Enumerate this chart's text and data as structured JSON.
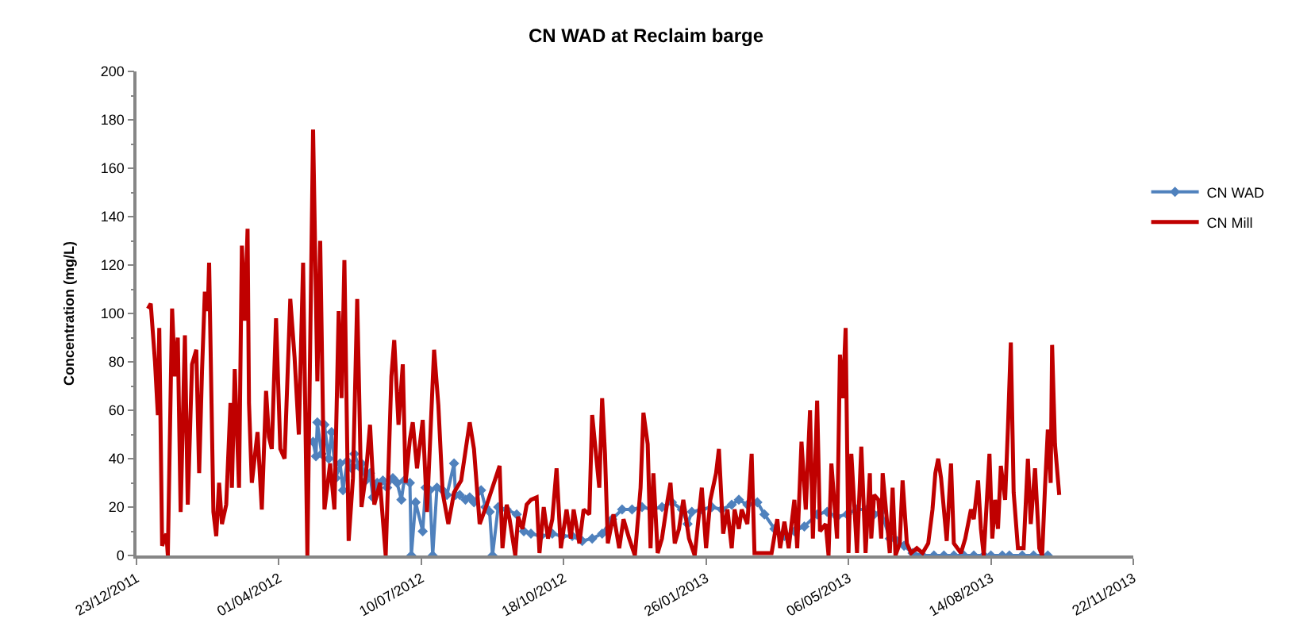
{
  "chart_data": {
    "type": "line",
    "title": "CN WAD at Reclaim barge",
    "ylabel": "Concentration (mg/L)",
    "xlim": [
      "2011-12-23",
      "2013-11-22"
    ],
    "xticks": [
      {
        "value": "2011-12-23",
        "label": "23/12/2011"
      },
      {
        "value": "2012-04-01",
        "label": "01/04/2012"
      },
      {
        "value": "2012-07-10",
        "label": "10/07/2012"
      },
      {
        "value": "2012-10-18",
        "label": "18/10/2012"
      },
      {
        "value": "2013-01-26",
        "label": "26/01/2013"
      },
      {
        "value": "2013-05-06",
        "label": "06/05/2013"
      },
      {
        "value": "2013-08-14",
        "label": "14/08/2013"
      },
      {
        "value": "2013-11-22",
        "label": "22/11/2013"
      }
    ],
    "ylim": [
      0,
      200
    ],
    "yticks": [
      0,
      20,
      40,
      60,
      80,
      100,
      120,
      140,
      160,
      180,
      200
    ],
    "legend": "right",
    "line_style": "solid",
    "series": [
      {
        "name": "CN WAD",
        "color": "#4f81bd",
        "marker": "diamond",
        "x": [
          "2012-04-25",
          "2012-04-27",
          "2012-04-28",
          "2012-05-01",
          "2012-05-03",
          "2012-05-06",
          "2012-05-08",
          "2012-05-11",
          "2012-05-14",
          "2012-05-16",
          "2012-05-19",
          "2012-05-22",
          "2012-05-24",
          "2012-05-27",
          "2012-05-29",
          "2012-06-01",
          "2012-06-04",
          "2012-06-06",
          "2012-06-09",
          "2012-06-13",
          "2012-06-16",
          "2012-06-20",
          "2012-06-23",
          "2012-06-26",
          "2012-06-28",
          "2012-07-02",
          "2012-07-03",
          "2012-07-06",
          "2012-07-11",
          "2012-07-13",
          "2012-07-16",
          "2012-07-18",
          "2012-07-21",
          "2012-07-25",
          "2012-07-28",
          "2012-08-02",
          "2012-08-03",
          "2012-08-06",
          "2012-08-10",
          "2012-08-13",
          "2012-08-16",
          "2012-08-21",
          "2012-08-24",
          "2012-08-27",
          "2012-08-29",
          "2012-09-02",
          "2012-09-08",
          "2012-09-15",
          "2012-09-20",
          "2012-09-25",
          "2012-10-02",
          "2012-10-10",
          "2012-10-17",
          "2012-10-24",
          "2012-10-31",
          "2012-11-07",
          "2012-11-14",
          "2012-11-21",
          "2012-11-28",
          "2012-12-05",
          "2012-12-12",
          "2012-12-19",
          "2012-12-26",
          "2013-01-02",
          "2013-01-09",
          "2013-01-13",
          "2013-01-16",
          "2013-01-23",
          "2013-01-30",
          "2013-02-06",
          "2013-02-13",
          "2013-02-18",
          "2013-02-24",
          "2013-03-03",
          "2013-03-08",
          "2013-03-15",
          "2013-03-22",
          "2013-03-29",
          "2013-04-05",
          "2013-04-14",
          "2013-04-21",
          "2013-04-28",
          "2013-05-05",
          "2013-05-12",
          "2013-05-19",
          "2013-05-24",
          "2013-05-29",
          "2013-06-04",
          "2013-06-09",
          "2013-06-14",
          "2013-06-20",
          "2013-06-27",
          "2013-07-05",
          "2013-07-12",
          "2013-07-19",
          "2013-07-26",
          "2013-08-02",
          "2013-08-09",
          "2013-08-14",
          "2013-08-22",
          "2013-08-27",
          "2013-09-05",
          "2013-09-13",
          "2013-09-23"
        ],
        "values": [
          47,
          41,
          55,
          42,
          54,
          40,
          51,
          32,
          38,
          27,
          39,
          36,
          42,
          37,
          38,
          31,
          34,
          24,
          30,
          31,
          28,
          32,
          30,
          23,
          31,
          30,
          0,
          22,
          10,
          28,
          27,
          0,
          28,
          27,
          25,
          38,
          25,
          25,
          23,
          24,
          22,
          27,
          20,
          18,
          0,
          20,
          19,
          17,
          10,
          9,
          8,
          9,
          8,
          8,
          6,
          7,
          9,
          15,
          19,
          19,
          20,
          19,
          20,
          22,
          19,
          13,
          18,
          19,
          20,
          19,
          21,
          23,
          21,
          22,
          17,
          11,
          8,
          10,
          12,
          17,
          18,
          16,
          17,
          19,
          19,
          17,
          18,
          7,
          6,
          4,
          1,
          0,
          0,
          0,
          0,
          0,
          0,
          0,
          0,
          0,
          0,
          0,
          0,
          0
        ]
      },
      {
        "name": "CN Mill",
        "color": "#c00000",
        "marker": "none",
        "x": [
          "2011-12-31",
          "2012-01-02",
          "2012-01-05",
          "2012-01-07",
          "2012-01-08",
          "2012-01-10",
          "2012-01-13",
          "2012-01-14",
          "2012-01-17",
          "2012-01-19",
          "2012-01-21",
          "2012-01-23",
          "2012-01-26",
          "2012-01-28",
          "2012-01-31",
          "2012-02-03",
          "2012-02-05",
          "2012-02-07",
          "2012-02-09",
          "2012-02-11",
          "2012-02-12",
          "2012-02-15",
          "2012-02-17",
          "2012-02-19",
          "2012-02-21",
          "2012-02-24",
          "2012-02-27",
          "2012-02-28",
          "2012-03-01",
          "2012-03-04",
          "2012-03-06",
          "2012-03-08",
          "2012-03-10",
          "2012-03-11",
          "2012-03-13",
          "2012-03-17",
          "2012-03-20",
          "2012-03-23",
          "2012-03-25",
          "2012-03-27",
          "2012-03-30",
          "2012-04-02",
          "2012-04-05",
          "2012-04-09",
          "2012-04-12",
          "2012-04-15",
          "2012-04-18",
          "2012-04-21",
          "2012-04-25",
          "2012-04-28",
          "2012-04-30",
          "2012-05-03",
          "2012-05-07",
          "2012-05-10",
          "2012-05-13",
          "2012-05-15",
          "2012-05-17",
          "2012-05-20",
          "2012-05-23",
          "2012-05-26",
          "2012-05-29",
          "2012-06-01",
          "2012-06-04",
          "2012-06-07",
          "2012-06-11",
          "2012-06-15",
          "2012-06-19",
          "2012-06-21",
          "2012-06-24",
          "2012-06-27",
          "2012-06-29",
          "2012-07-02",
          "2012-07-04",
          "2012-07-07",
          "2012-07-11",
          "2012-07-14",
          "2012-07-19",
          "2012-07-22",
          "2012-07-25",
          "2012-07-29",
          "2012-08-02",
          "2012-08-07",
          "2012-08-13",
          "2012-08-16",
          "2012-08-20",
          "2012-08-25",
          "2012-09-03",
          "2012-09-05",
          "2012-09-08",
          "2012-09-10",
          "2012-09-14",
          "2012-09-16",
          "2012-09-19",
          "2012-09-22",
          "2012-09-25",
          "2012-09-29",
          "2012-10-01",
          "2012-10-04",
          "2012-10-07",
          "2012-10-10",
          "2012-10-13",
          "2012-10-16",
          "2012-10-20",
          "2012-10-23",
          "2012-10-25",
          "2012-10-29",
          "2012-11-01",
          "2012-11-05",
          "2012-11-07",
          "2012-11-09",
          "2012-11-12",
          "2012-11-14",
          "2012-11-16",
          "2012-11-18",
          "2012-11-22",
          "2012-11-26",
          "2012-11-29",
          "2012-12-03",
          "2012-12-07",
          "2012-12-11",
          "2012-12-13",
          "2012-12-16",
          "2012-12-18",
          "2012-12-20",
          "2012-12-23",
          "2012-12-26",
          "2012-12-30",
          "2013-01-01",
          "2013-01-04",
          "2013-01-07",
          "2013-01-10",
          "2013-01-14",
          "2013-01-18",
          "2013-01-21",
          "2013-01-23",
          "2013-01-26",
          "2013-01-29",
          "2013-02-02",
          "2013-02-04",
          "2013-02-07",
          "2013-02-10",
          "2013-02-13",
          "2013-02-15",
          "2013-02-18",
          "2013-02-20",
          "2013-02-24",
          "2013-02-27",
          "2013-03-01",
          "2013-03-06",
          "2013-03-13",
          "2013-03-17",
          "2013-03-19",
          "2013-03-22",
          "2013-03-25",
          "2013-03-29",
          "2013-03-31",
          "2013-04-03",
          "2013-04-06",
          "2013-04-09",
          "2013-04-11",
          "2013-04-14",
          "2013-04-16",
          "2013-04-20",
          "2013-04-22",
          "2013-04-24",
          "2013-04-28",
          "2013-04-30",
          "2013-05-02",
          "2013-05-04",
          "2013-05-06",
          "2013-05-08",
          "2013-05-12",
          "2013-05-15",
          "2013-05-18",
          "2013-05-21",
          "2013-05-22",
          "2013-05-24",
          "2013-05-27",
          "2013-05-29",
          "2013-05-30",
          "2013-06-01",
          "2013-06-04",
          "2013-06-06",
          "2013-06-08",
          "2013-06-11",
          "2013-06-13",
          "2013-06-16",
          "2013-06-19",
          "2013-06-23",
          "2013-06-27",
          "2013-07-01",
          "2013-07-04",
          "2013-07-06",
          "2013-07-08",
          "2013-07-10",
          "2013-07-14",
          "2013-07-17",
          "2013-07-19",
          "2013-07-24",
          "2013-07-27",
          "2013-07-31",
          "2013-08-02",
          "2013-08-05",
          "2013-08-07",
          "2013-08-09",
          "2013-08-13",
          "2013-08-15",
          "2013-08-17",
          "2013-08-19",
          "2013-08-21",
          "2013-08-24",
          "2013-08-26",
          "2013-08-28",
          "2013-08-30",
          "2013-09-02",
          "2013-09-06",
          "2013-09-09",
          "2013-09-11",
          "2013-09-14",
          "2013-09-17",
          "2013-09-19",
          "2013-09-21",
          "2013-09-23",
          "2013-09-25",
          "2013-09-26",
          "2013-09-28",
          "2013-10-01"
        ],
        "values": [
          102,
          104,
          80,
          58,
          94,
          4,
          9,
          0,
          102,
          74,
          90,
          18,
          91,
          21,
          79,
          85,
          34,
          76,
          109,
          101,
          121,
          18,
          8,
          30,
          13,
          21,
          63,
          28,
          77,
          28,
          128,
          97,
          135,
          63,
          30,
          51,
          19,
          68,
          49,
          44,
          98,
          44,
          40,
          106,
          82,
          50,
          121,
          0,
          176,
          72,
          130,
          19,
          38,
          19,
          101,
          65,
          122,
          6,
          32,
          106,
          20,
          33,
          54,
          21,
          30,
          0,
          74,
          89,
          54,
          79,
          30,
          48,
          55,
          36,
          56,
          18,
          85,
          62,
          26,
          13,
          26,
          31,
          55,
          44,
          13,
          21,
          37,
          3,
          21,
          15,
          0,
          16,
          11,
          21,
          23,
          24,
          1,
          20,
          7,
          15,
          36,
          3,
          19,
          7,
          19,
          5,
          19,
          17,
          58,
          46,
          28,
          65,
          42,
          5,
          17,
          3,
          15,
          7,
          0,
          28,
          59,
          46,
          3,
          34,
          1,
          7,
          23,
          30,
          5,
          11,
          23,
          7,
          0,
          17,
          28,
          3,
          23,
          34,
          44,
          9,
          19,
          3,
          19,
          11,
          19,
          13,
          42,
          1,
          1,
          1,
          15,
          3,
          14,
          3,
          23,
          3,
          47,
          19,
          60,
          7,
          64,
          10,
          13,
          0,
          38,
          7,
          83,
          65,
          94,
          1,
          42,
          1,
          45,
          1,
          34,
          7,
          25,
          23,
          7,
          34,
          21,
          1,
          28,
          0,
          5,
          31,
          5,
          1,
          3,
          1,
          5,
          19,
          34,
          40,
          32,
          6,
          38,
          5,
          1,
          7,
          19,
          15,
          31,
          11,
          0,
          42,
          7,
          23,
          11,
          37,
          23,
          53,
          88,
          26,
          3,
          3,
          40,
          13,
          36,
          3,
          0,
          28,
          52,
          30,
          87,
          46,
          25
        ]
      }
    ]
  }
}
